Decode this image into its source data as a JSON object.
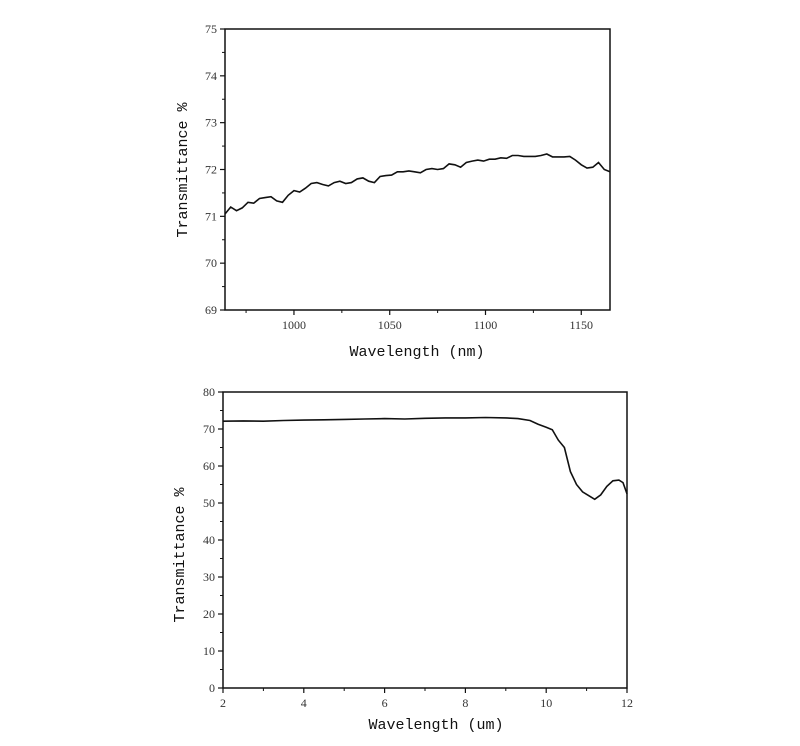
{
  "chart_data": [
    {
      "type": "line",
      "title": "",
      "xlabel": "Wavelength (nm)",
      "ylabel": "Transmittance %",
      "xlim": [
        964,
        1165
      ],
      "ylim": [
        69,
        75
      ],
      "xticks": [
        1000,
        1050,
        1100,
        1150
      ],
      "yticks": [
        69,
        70,
        71,
        72,
        73,
        74,
        75
      ],
      "grid": false,
      "legend": null,
      "series": [
        {
          "name": "Transmittance",
          "x": [
            964,
            967,
            970,
            973,
            976,
            979,
            982,
            985,
            988,
            991,
            994,
            997,
            1000,
            1003,
            1006,
            1009,
            1012,
            1015,
            1018,
            1021,
            1024,
            1027,
            1030,
            1033,
            1036,
            1039,
            1042,
            1045,
            1048,
            1051,
            1054,
            1057,
            1060,
            1063,
            1066,
            1069,
            1072,
            1075,
            1078,
            1081,
            1084,
            1087,
            1090,
            1093,
            1096,
            1099,
            1102,
            1105,
            1108,
            1111,
            1114,
            1117,
            1120,
            1123,
            1126,
            1129,
            1132,
            1135,
            1138,
            1141,
            1144,
            1147,
            1150,
            1153,
            1156,
            1159,
            1162,
            1165
          ],
          "y": [
            71.05,
            71.2,
            71.12,
            71.18,
            71.3,
            71.28,
            71.38,
            71.4,
            71.42,
            71.33,
            71.3,
            71.45,
            71.55,
            71.52,
            71.6,
            71.7,
            71.72,
            71.68,
            71.65,
            71.72,
            71.75,
            71.7,
            71.72,
            71.8,
            71.82,
            71.75,
            71.72,
            71.85,
            71.87,
            71.88,
            71.95,
            71.95,
            71.97,
            71.95,
            71.93,
            72.0,
            72.02,
            72.0,
            72.02,
            72.12,
            72.1,
            72.05,
            72.15,
            72.18,
            72.2,
            72.18,
            72.22,
            72.22,
            72.25,
            72.24,
            72.3,
            72.3,
            72.28,
            72.28,
            72.28,
            72.3,
            72.33,
            72.27,
            72.27,
            72.27,
            72.28,
            72.2,
            72.1,
            72.03,
            72.05,
            72.15,
            72.0,
            71.95
          ]
        }
      ]
    },
    {
      "type": "line",
      "title": "",
      "xlabel": "Wavelength (um)",
      "ylabel": "Transmittance %",
      "xlim": [
        2,
        12
      ],
      "ylim": [
        0,
        80
      ],
      "xticks": [
        2,
        4,
        6,
        8,
        10,
        12
      ],
      "yticks": [
        0,
        10,
        20,
        30,
        40,
        50,
        60,
        70,
        80
      ],
      "grid": false,
      "legend": null,
      "series": [
        {
          "name": "Transmittance",
          "x": [
            2,
            2.5,
            3,
            3.5,
            4,
            4.5,
            5,
            5.5,
            6,
            6.5,
            7,
            7.5,
            8,
            8.5,
            9,
            9.3,
            9.6,
            9.8,
            10.0,
            10.15,
            10.3,
            10.45,
            10.6,
            10.75,
            10.9,
            11.05,
            11.2,
            11.35,
            11.5,
            11.65,
            11.8,
            11.9,
            12.0
          ],
          "y": [
            72.1,
            72.2,
            72.1,
            72.3,
            72.4,
            72.5,
            72.6,
            72.7,
            72.8,
            72.7,
            72.9,
            73.0,
            73.0,
            73.1,
            73.0,
            72.8,
            72.3,
            71.3,
            70.5,
            69.8,
            67.0,
            65.0,
            58.5,
            55.0,
            53.0,
            52.0,
            51.0,
            52.2,
            54.5,
            56.0,
            56.2,
            55.5,
            52.5
          ]
        }
      ]
    }
  ],
  "charts": {
    "top": {
      "xlabel": "Wavelength (nm)",
      "ylabel": "Transmittance %",
      "xtick_labels": [
        "1000",
        "1050",
        "1100",
        "1150"
      ],
      "ytick_labels": [
        "69",
        "70",
        "71",
        "72",
        "73",
        "74",
        "75"
      ]
    },
    "bottom": {
      "xlabel": "Wavelength (um)",
      "ylabel": "Transmittance %",
      "xtick_labels": [
        "2",
        "4",
        "6",
        "8",
        "10",
        "12"
      ],
      "ytick_labels": [
        "0",
        "10",
        "20",
        "30",
        "40",
        "50",
        "60",
        "70",
        "80"
      ]
    }
  },
  "colors": {
    "line": "#111111",
    "axis": "#111111",
    "background": "#ffffff"
  }
}
